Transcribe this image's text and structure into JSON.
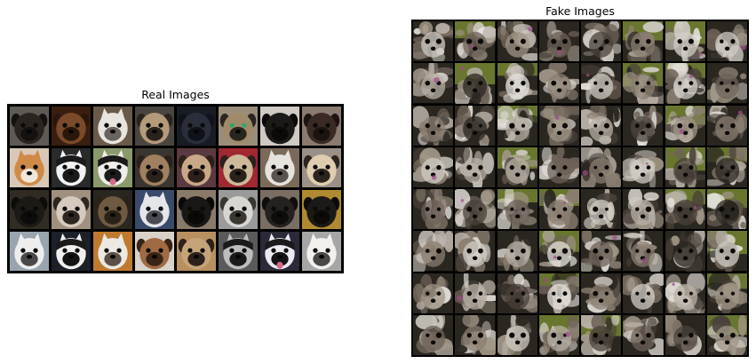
{
  "real_panel": {
    "title": "Real Images",
    "rows": 4,
    "cols": 8,
    "tiles": [
      {
        "kind": "pug-dark",
        "bg": "#5e5a55",
        "face": "#2a241f",
        "muzzle": "#141210"
      },
      {
        "kind": "pug-brown",
        "bg": "#3a1e10",
        "face": "#7a4a2a",
        "muzzle": "#2a170c"
      },
      {
        "kind": "husky",
        "bg": "#6a5a4a",
        "face": "#e8e4de",
        "muzzle": "#6a6460"
      },
      {
        "kind": "pug",
        "bg": "#4a4540",
        "face": "#b59a7a",
        "muzzle": "#2a231d"
      },
      {
        "kind": "dark",
        "bg": "#1a1c24",
        "face": "#2a2e3a",
        "muzzle": "#10121a"
      },
      {
        "kind": "pug-green-eye",
        "bg": "#9a8e7a",
        "face": "#a08a6a",
        "muzzle": "#2a2520"
      },
      {
        "kind": "pug-black",
        "bg": "#cfcac4",
        "face": "#1c1a18",
        "muzzle": "#0c0a08"
      },
      {
        "kind": "pug-brown2",
        "bg": "#8a7a70",
        "face": "#3a2a24",
        "muzzle": "#1c1410"
      },
      {
        "kind": "shiba",
        "bg": "#d8c8b6",
        "face": "#d08a48",
        "muzzle": "#f0e6dc"
      },
      {
        "kind": "husky-bw",
        "bg": "#2a2a2a",
        "face": "#f2f2f2",
        "muzzle": "#1a1a1a"
      },
      {
        "kind": "husky-tongue",
        "bg": "#8a9a6a",
        "face": "#f0eeea",
        "muzzle": "#1c1c1c"
      },
      {
        "kind": "pug",
        "bg": "#3a3530",
        "face": "#a08060",
        "muzzle": "#2a221a"
      },
      {
        "kind": "pug-light",
        "bg": "#5a3a40",
        "face": "#c9a888",
        "muzzle": "#2c2018"
      },
      {
        "kind": "pug-red",
        "bg": "#a02830",
        "face": "#cdb89a",
        "muzzle": "#2a221c"
      },
      {
        "kind": "husky",
        "bg": "#7a6a5a",
        "face": "#e6e2dc",
        "muzzle": "#5a5450"
      },
      {
        "kind": "pug-cream",
        "bg": "#9a9088",
        "face": "#e0cdb0",
        "muzzle": "#2c241e"
      },
      {
        "kind": "dark",
        "bg": "#302c24",
        "face": "#1c1a14",
        "muzzle": "#0e0c0a"
      },
      {
        "kind": "pug-grey",
        "bg": "#a09080",
        "face": "#d6cabe",
        "muzzle": "#2c2620"
      },
      {
        "kind": "pug",
        "bg": "#2a2620",
        "face": "#6e5a40",
        "muzzle": "#2a2218"
      },
      {
        "kind": "husky",
        "bg": "#3a4a6a",
        "face": "#e4e6ea",
        "muzzle": "#4a4c54"
      },
      {
        "kind": "pug-black",
        "bg": "#8a7a6a",
        "face": "#1a1816",
        "muzzle": "#0a0908"
      },
      {
        "kind": "pug-grey",
        "bg": "#9a9a9a",
        "face": "#d8d6d2",
        "muzzle": "#3a3630"
      },
      {
        "kind": "pug-black",
        "bg": "#7a6e64",
        "face": "#242220",
        "muzzle": "#0e0d0c"
      },
      {
        "kind": "pug-black",
        "bg": "#b08a30",
        "face": "#1c1a16",
        "muzzle": "#0c0b09"
      },
      {
        "kind": "husky",
        "bg": "#9aa4ae",
        "face": "#eeeeee",
        "muzzle": "#4a4848"
      },
      {
        "kind": "husky-bw",
        "bg": "#1c2028",
        "face": "#f0f0f0",
        "muzzle": "#141414"
      },
      {
        "kind": "husky",
        "bg": "#c07a30",
        "face": "#ece8e2",
        "muzzle": "#5a5048"
      },
      {
        "kind": "pug-brown",
        "bg": "#d8d2c8",
        "face": "#a06a44",
        "muzzle": "#3a2416"
      },
      {
        "kind": "pug",
        "bg": "#b89060",
        "face": "#c6a47a",
        "muzzle": "#2c221a"
      },
      {
        "kind": "husky-bw",
        "bg": "#5a5a5a",
        "face": "#bdbdbd",
        "muzzle": "#1a1a1a"
      },
      {
        "kind": "husky-tongue",
        "bg": "#2a2a3a",
        "face": "#eaeaf0",
        "muzzle": "#141418"
      },
      {
        "kind": "husky",
        "bg": "#a6a6a6",
        "face": "#f2f0ec",
        "muzzle": "#4a4844"
      }
    ]
  },
  "fake_panel": {
    "title": "Fake Images",
    "rows": 8,
    "cols": 8,
    "palette": [
      "#2a2620",
      "#6e6258",
      "#b8b0a6",
      "#e6e2dc",
      "#8a7e70",
      "#4a423a",
      "#a09686",
      "#d0ccc4"
    ],
    "accent_green": "#9ab83a",
    "accent_magenta": "#a04a8a"
  }
}
